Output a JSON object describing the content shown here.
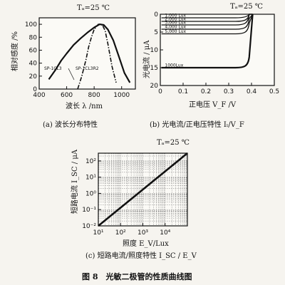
{
  "figure_title": "图 8　光敏二极管的性质曲线图",
  "chart_data": [
    {
      "id": "a",
      "type": "line",
      "condition": "Tₐ=25 ℃",
      "caption": "(a) 波长分布特性",
      "xlabel": "波长 λ /nm",
      "ylabel": "相对感度 /%",
      "xlim": [
        400,
        1100
      ],
      "ylim": [
        0,
        110
      ],
      "xticks": [
        "400",
        "600",
        "800",
        "1000"
      ],
      "yticks": [
        "0",
        "20",
        "40",
        "60",
        "80",
        "100"
      ],
      "series": [
        {
          "name": "SP-1CL3",
          "style": "solid",
          "x": [
            470,
            520,
            560,
            600,
            650,
            700,
            750,
            800,
            840,
            870,
            900,
            940,
            980,
            1020,
            1060
          ],
          "y": [
            15,
            30,
            44,
            55,
            68,
            78,
            87,
            95,
            100,
            99,
            92,
            75,
            50,
            25,
            10
          ]
        },
        {
          "name": "SP-1CL3R2",
          "style": "dashdot",
          "x": [
            680,
            710,
            740,
            760,
            780,
            800,
            830,
            860,
            880,
            900,
            930,
            960
          ],
          "y": [
            0,
            20,
            45,
            65,
            80,
            92,
            100,
            99,
            90,
            70,
            35,
            10
          ]
        }
      ]
    },
    {
      "id": "b",
      "type": "line",
      "condition": "Tₐ=25 ℃",
      "caption": "(b) 光电流/正电压特性 Iₗ/V_F",
      "xlabel": "正电压 V_F /V",
      "ylabel": "光电流 / μA",
      "xlim": [
        0,
        0.5
      ],
      "ylim": [
        20,
        0
      ],
      "xticks": [
        "0",
        "0.1",
        "0.2",
        "0.3",
        "0.4",
        "0.5"
      ],
      "yticks": [
        "0",
        "5",
        "10",
        "15",
        "20"
      ],
      "series": [
        {
          "name": "1000Lux",
          "plateau": 15.0
        },
        {
          "name": "1,000 Lux",
          "plateau": 1.0
        },
        {
          "name": "2,000 Lux",
          "plateau": 2.0
        },
        {
          "name": "3,000 Lux",
          "plateau": 3.0
        },
        {
          "name": "4,000 Lux",
          "plateau": 4.2
        },
        {
          "name": "5,000 Lux",
          "plateau": 5.5
        }
      ]
    },
    {
      "id": "c",
      "type": "line",
      "condition": "Tₐ=25 ℃",
      "caption": "(c) 短路电流/照度特性 I_SC / E_V",
      "xlabel": "照度 E_V/Lux",
      "ylabel": "短路电流 I_SC / μA",
      "xscale": "log",
      "yscale": "log",
      "xlim": [
        10,
        100000
      ],
      "ylim": [
        0.01,
        300
      ],
      "xticks": [
        "10¹",
        "10²",
        "10³",
        "10⁴"
      ],
      "yticks": [
        "10⁻²",
        "10⁻¹",
        "10⁰",
        "10¹",
        "10²"
      ],
      "grid": true,
      "series": [
        {
          "name": "I_SC",
          "x": [
            10,
            100000
          ],
          "y": [
            0.01,
            300
          ]
        }
      ]
    }
  ]
}
